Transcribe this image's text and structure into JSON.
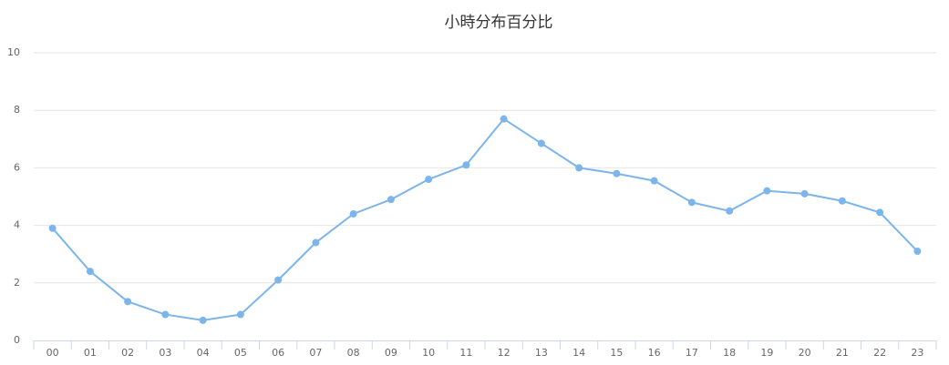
{
  "chart_data": {
    "type": "line",
    "title": "小時分布百分比",
    "categories": [
      "00",
      "01",
      "02",
      "03",
      "04",
      "05",
      "06",
      "07",
      "08",
      "09",
      "10",
      "11",
      "12",
      "13",
      "14",
      "15",
      "16",
      "17",
      "18",
      "19",
      "20",
      "21",
      "22",
      "23"
    ],
    "series": [
      {
        "color": "#7cb5ec",
        "values": [
          3.9,
          2.4,
          1.35,
          0.9,
          0.7,
          0.9,
          2.1,
          3.4,
          4.4,
          4.9,
          5.6,
          6.1,
          7.7,
          6.85,
          6.0,
          5.8,
          5.55,
          4.8,
          4.5,
          5.2,
          5.1,
          4.85,
          4.45,
          3.1
        ]
      }
    ],
    "ylim": [
      0,
      10
    ],
    "yticks": [
      0,
      2,
      4,
      6,
      8,
      10
    ],
    "grid": true
  }
}
